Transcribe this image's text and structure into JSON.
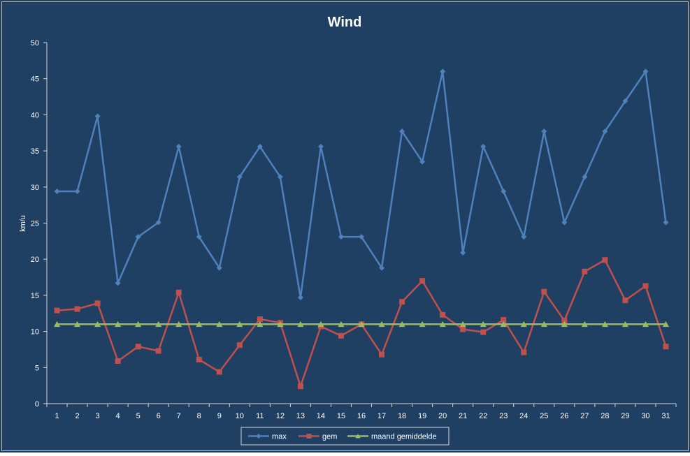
{
  "chart_data": {
    "type": "line",
    "title": "Wind",
    "xlabel": "",
    "ylabel": "km/u",
    "ylim": [
      0,
      50
    ],
    "yticks": [
      0,
      5,
      10,
      15,
      20,
      25,
      30,
      35,
      40,
      45,
      50
    ],
    "grid": false,
    "legend_position": "bottom",
    "categories": [
      "1",
      "2",
      "3",
      "4",
      "5",
      "6",
      "7",
      "8",
      "9",
      "10",
      "11",
      "12",
      "13",
      "14",
      "15",
      "16",
      "17",
      "18",
      "19",
      "20",
      "21",
      "22",
      "23",
      "24",
      "25",
      "26",
      "27",
      "28",
      "29",
      "30",
      "31"
    ],
    "series": [
      {
        "name": "max",
        "color": "#4f81bd",
        "marker": "diamond",
        "values": [
          29.4,
          29.4,
          39.8,
          16.7,
          23.1,
          25.1,
          35.6,
          23.1,
          18.8,
          31.4,
          35.6,
          31.4,
          14.7,
          35.6,
          23.1,
          23.1,
          18.8,
          37.7,
          33.5,
          46.0,
          20.9,
          35.6,
          29.4,
          23.1,
          37.7,
          25.1,
          31.4,
          37.7,
          41.9,
          46.0,
          25.1
        ]
      },
      {
        "name": "gem",
        "color": "#c0504d",
        "marker": "square",
        "values": [
          12.9,
          13.1,
          13.9,
          5.9,
          7.9,
          7.3,
          15.4,
          6.1,
          4.4,
          8.1,
          11.7,
          11.2,
          2.4,
          10.7,
          9.4,
          11.0,
          6.8,
          14.1,
          17.0,
          12.3,
          10.3,
          9.9,
          11.6,
          7.1,
          15.5,
          11.5,
          18.3,
          19.9,
          14.3,
          16.3,
          7.9
        ]
      },
      {
        "name": "maand gemiddelde",
        "color": "#9bbb59",
        "marker": "triangle",
        "values": [
          11,
          11,
          11,
          11,
          11,
          11,
          11,
          11,
          11,
          11,
          11,
          11,
          11,
          11,
          11,
          11,
          11,
          11,
          11,
          11,
          11,
          11,
          11,
          11,
          11,
          11,
          11,
          11,
          11,
          11,
          11
        ]
      }
    ]
  },
  "colors": {
    "background": "#1f3f63",
    "axis": "#d9d9d9",
    "text": "#ffffff",
    "legend_background": "#1f3f63",
    "legend_border": "#d9d9d9"
  }
}
